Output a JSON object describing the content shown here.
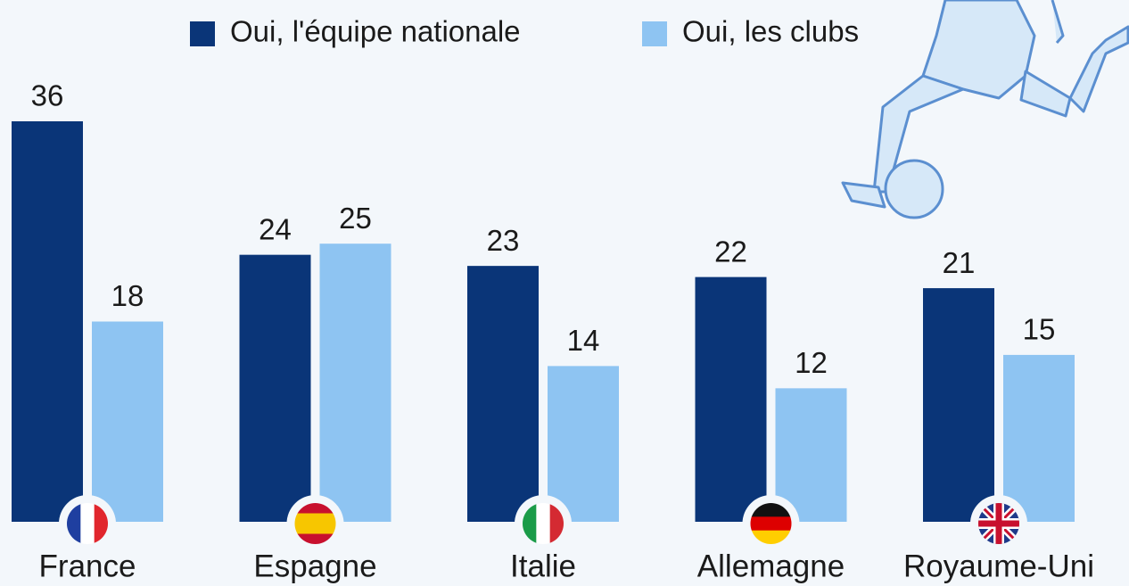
{
  "chart_data": {
    "type": "bar",
    "categories": [
      "France",
      "Espagne",
      "Italie",
      "Allemagne",
      "Royaume-Uni"
    ],
    "series": [
      {
        "name": "Oui, l'équipe nationale",
        "color": "#0a3578",
        "values": [
          36,
          24,
          23,
          22,
          21
        ]
      },
      {
        "name": "Oui, les clubs",
        "color": "#8ec4f2",
        "values": [
          18,
          25,
          14,
          12,
          15
        ]
      }
    ],
    "legend": "top"
  }
}
